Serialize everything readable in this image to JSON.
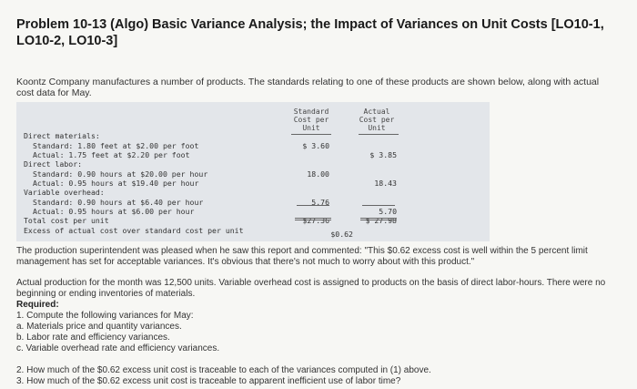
{
  "title": "Problem 10-13 (Algo) Basic Variance Analysis; the Impact of Variances on Unit Costs [LO10-1, LO10-2, LO10-3]",
  "intro": "Koontz Company manufactures a number of products. The standards relating to one of these products are shown below, along with actual cost data for May.",
  "table": {
    "col_standard": [
      "Standard",
      "Cost per",
      "Unit"
    ],
    "col_actual": [
      "Actual",
      "Cost per",
      "Unit"
    ],
    "rows": [
      {
        "label": "Direct materials:",
        "indent": 0,
        "standard": "",
        "actual": ""
      },
      {
        "label": "Standard: 1.80 feet at $2.00 per foot",
        "indent": 1,
        "standard": "$ 3.60",
        "actual": ""
      },
      {
        "label": "Actual: 1.75 feet at $2.20 per foot",
        "indent": 1,
        "standard": "",
        "actual": "$ 3.85"
      },
      {
        "label": "Direct labor:",
        "indent": 0,
        "standard": "",
        "actual": ""
      },
      {
        "label": "Standard: 0.90 hours at $20.00 per hour",
        "indent": 1,
        "standard": "18.00",
        "actual": ""
      },
      {
        "label": "Actual: 0.95 hours at $19.40 per hour",
        "indent": 1,
        "standard": "",
        "actual": "18.43"
      },
      {
        "label": "Variable overhead:",
        "indent": 0,
        "standard": "",
        "actual": ""
      },
      {
        "label": "Standard: 0.90 hours at $6.40 per hour",
        "indent": 1,
        "standard": "5.76",
        "actual": ""
      },
      {
        "label": "Actual: 0.95 hours at $6.00 per hour",
        "indent": 1,
        "standard": "",
        "actual": "5.70"
      },
      {
        "label": "Total cost per unit",
        "indent": 0,
        "standard": "$27.36",
        "actual": "$ 27.98"
      },
      {
        "label": "Excess of actual cost over standard cost per unit",
        "indent": 0,
        "standard": "",
        "actual": ""
      }
    ],
    "excess_value": "$0.62"
  },
  "paragraph1": "The production superintendent was pleased when he saw this report and commented: \"This $0.62 excess cost is well within the 5 percent limit management has set for acceptable variances. It's obvious that there's not much to worry about with this product.\"",
  "paragraph2": "Actual production for the month was 12,500 units. Variable overhead cost is assigned to products on the basis of direct labor-hours. There were no beginning or ending inventories of materials.",
  "required_label": "Required:",
  "req1": "1. Compute the following variances for May:",
  "req1a": "a. Materials price and quantity variances.",
  "req1b": "b. Labor rate and efficiency variances.",
  "req1c": "c. Variable overhead rate and efficiency variances.",
  "req2": "2. How much of the $0.62 excess unit cost is traceable to each of the variances computed in (1) above.",
  "req3": "3. How much of the $0.62 excess unit cost is traceable to apparent inefficient use of labor time?"
}
